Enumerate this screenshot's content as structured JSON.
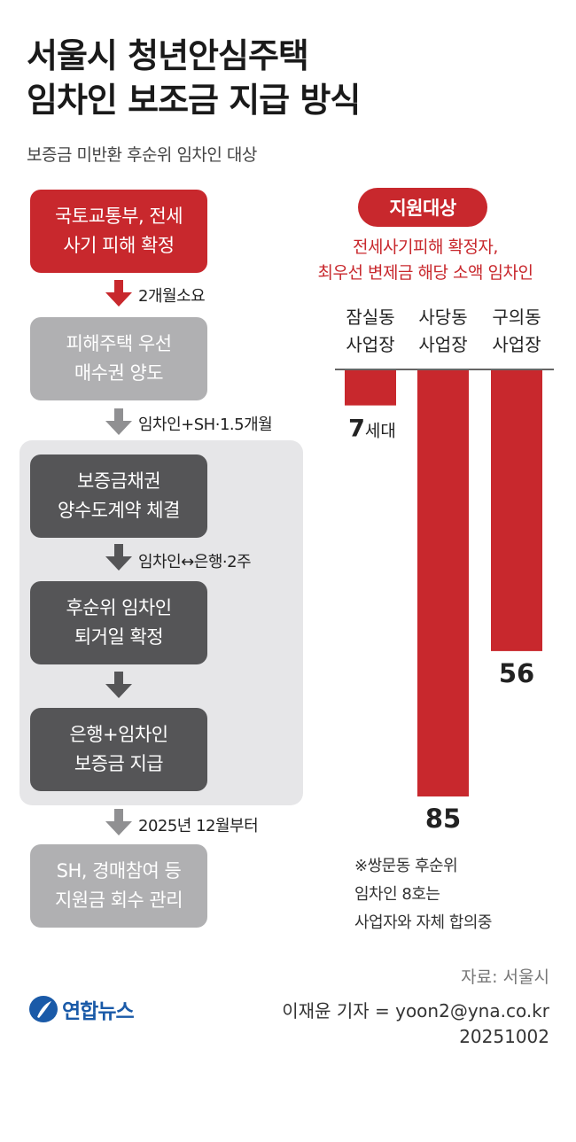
{
  "title_line1": "서울시 청년안심주택",
  "title_line2": "임차인 보조금 지급 방식",
  "subtitle": "보증금 미반환 후순위 임차인 대상",
  "flow": {
    "step1": "국토교통부, 전세\n사기 피해 확정",
    "arrow1": "2개월소요",
    "step2": "피해주택 우선\n매수권 양도",
    "arrow2": "임차인+SH·1.5개월",
    "step3": "보증금채권\n양수도계약 체결",
    "arrow3": "임차인↔은행·2주",
    "step4": "후순위 임차인\n퇴거일 확정",
    "step5": "은행+임차인\n보증금 지급",
    "arrow5": "2025년 12월부터",
    "step6": "SH, 경매참여 등\n지원금 회수 관리"
  },
  "target_badge": "지원대상",
  "target_desc": "전세사기피해 확정자,\n최우선 변제금 해당 소액 임차인",
  "chart_data": {
    "type": "bar",
    "categories": [
      "잠실동\n사업장",
      "사당동\n사업장",
      "구의동\n사업장"
    ],
    "values": [
      7,
      85,
      56
    ],
    "value_labels": [
      "7",
      "85",
      "56"
    ],
    "unit": "세대",
    "unit_shown_on": 0,
    "bar_color": "#c8282d",
    "orientation": "downward",
    "ylim": [
      0,
      85
    ]
  },
  "note": "※쌍문동 후순위\n  임차인 8호는\n  사업자와 자체 합의중",
  "source": "자료: 서울시",
  "logo_text": "연합뉴스",
  "credit_line1": "이재윤 기자 = yoon2@yna.co.kr",
  "credit_line2": "20251002",
  "colors": {
    "accent_red": "#c8282d",
    "box_lightgray": "#b0b0b2",
    "box_darkgray": "#555557",
    "arrow_red": "#c8282d",
    "arrow_gray": "#909092",
    "group_background": "#e6e6e8"
  }
}
